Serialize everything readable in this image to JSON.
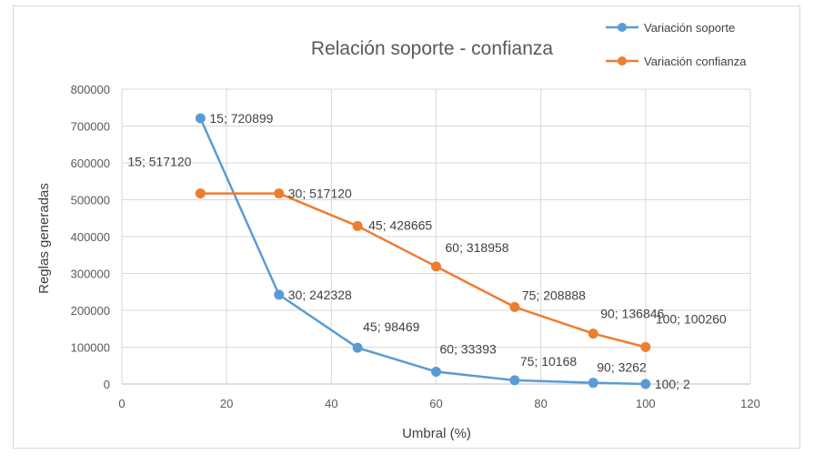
{
  "chart_data": {
    "type": "scatter",
    "title": "Relación soporte - confianza",
    "xlabel": "Umbral  (%)",
    "ylabel": "Reglas generadas",
    "xlim": [
      0,
      120
    ],
    "ylim": [
      0,
      800000
    ],
    "x_ticks": [
      "0",
      "20",
      "40",
      "60",
      "80",
      "100",
      "120"
    ],
    "y_ticks": [
      "0",
      "100000",
      "200000",
      "300000",
      "400000",
      "500000",
      "600000",
      "700000",
      "800000"
    ],
    "grid": true,
    "legend_position": "top-right",
    "series": [
      {
        "name": "Variación soporte",
        "color": "#5b9bd5",
        "x": [
          15,
          30,
          45,
          60,
          75,
          90,
          100
        ],
        "y": [
          720899,
          242328,
          98469,
          33393,
          10168,
          3262,
          2
        ],
        "labels": [
          "15; 720899",
          "30; 242328",
          "45; 98469",
          "60; 33393",
          "75; 10168",
          "90; 3262",
          "100; 2"
        ]
      },
      {
        "name": "Variación confianza",
        "color": "#ed7d31",
        "x": [
          15,
          30,
          45,
          60,
          75,
          90,
          100
        ],
        "y": [
          517120,
          517120,
          428665,
          318958,
          208888,
          136846,
          100260
        ],
        "labels": [
          "15; 517120",
          "30; 517120",
          "45; 428665",
          "60; 318958",
          "75; 208888",
          "90; 136846",
          "100; 100260"
        ]
      }
    ]
  }
}
